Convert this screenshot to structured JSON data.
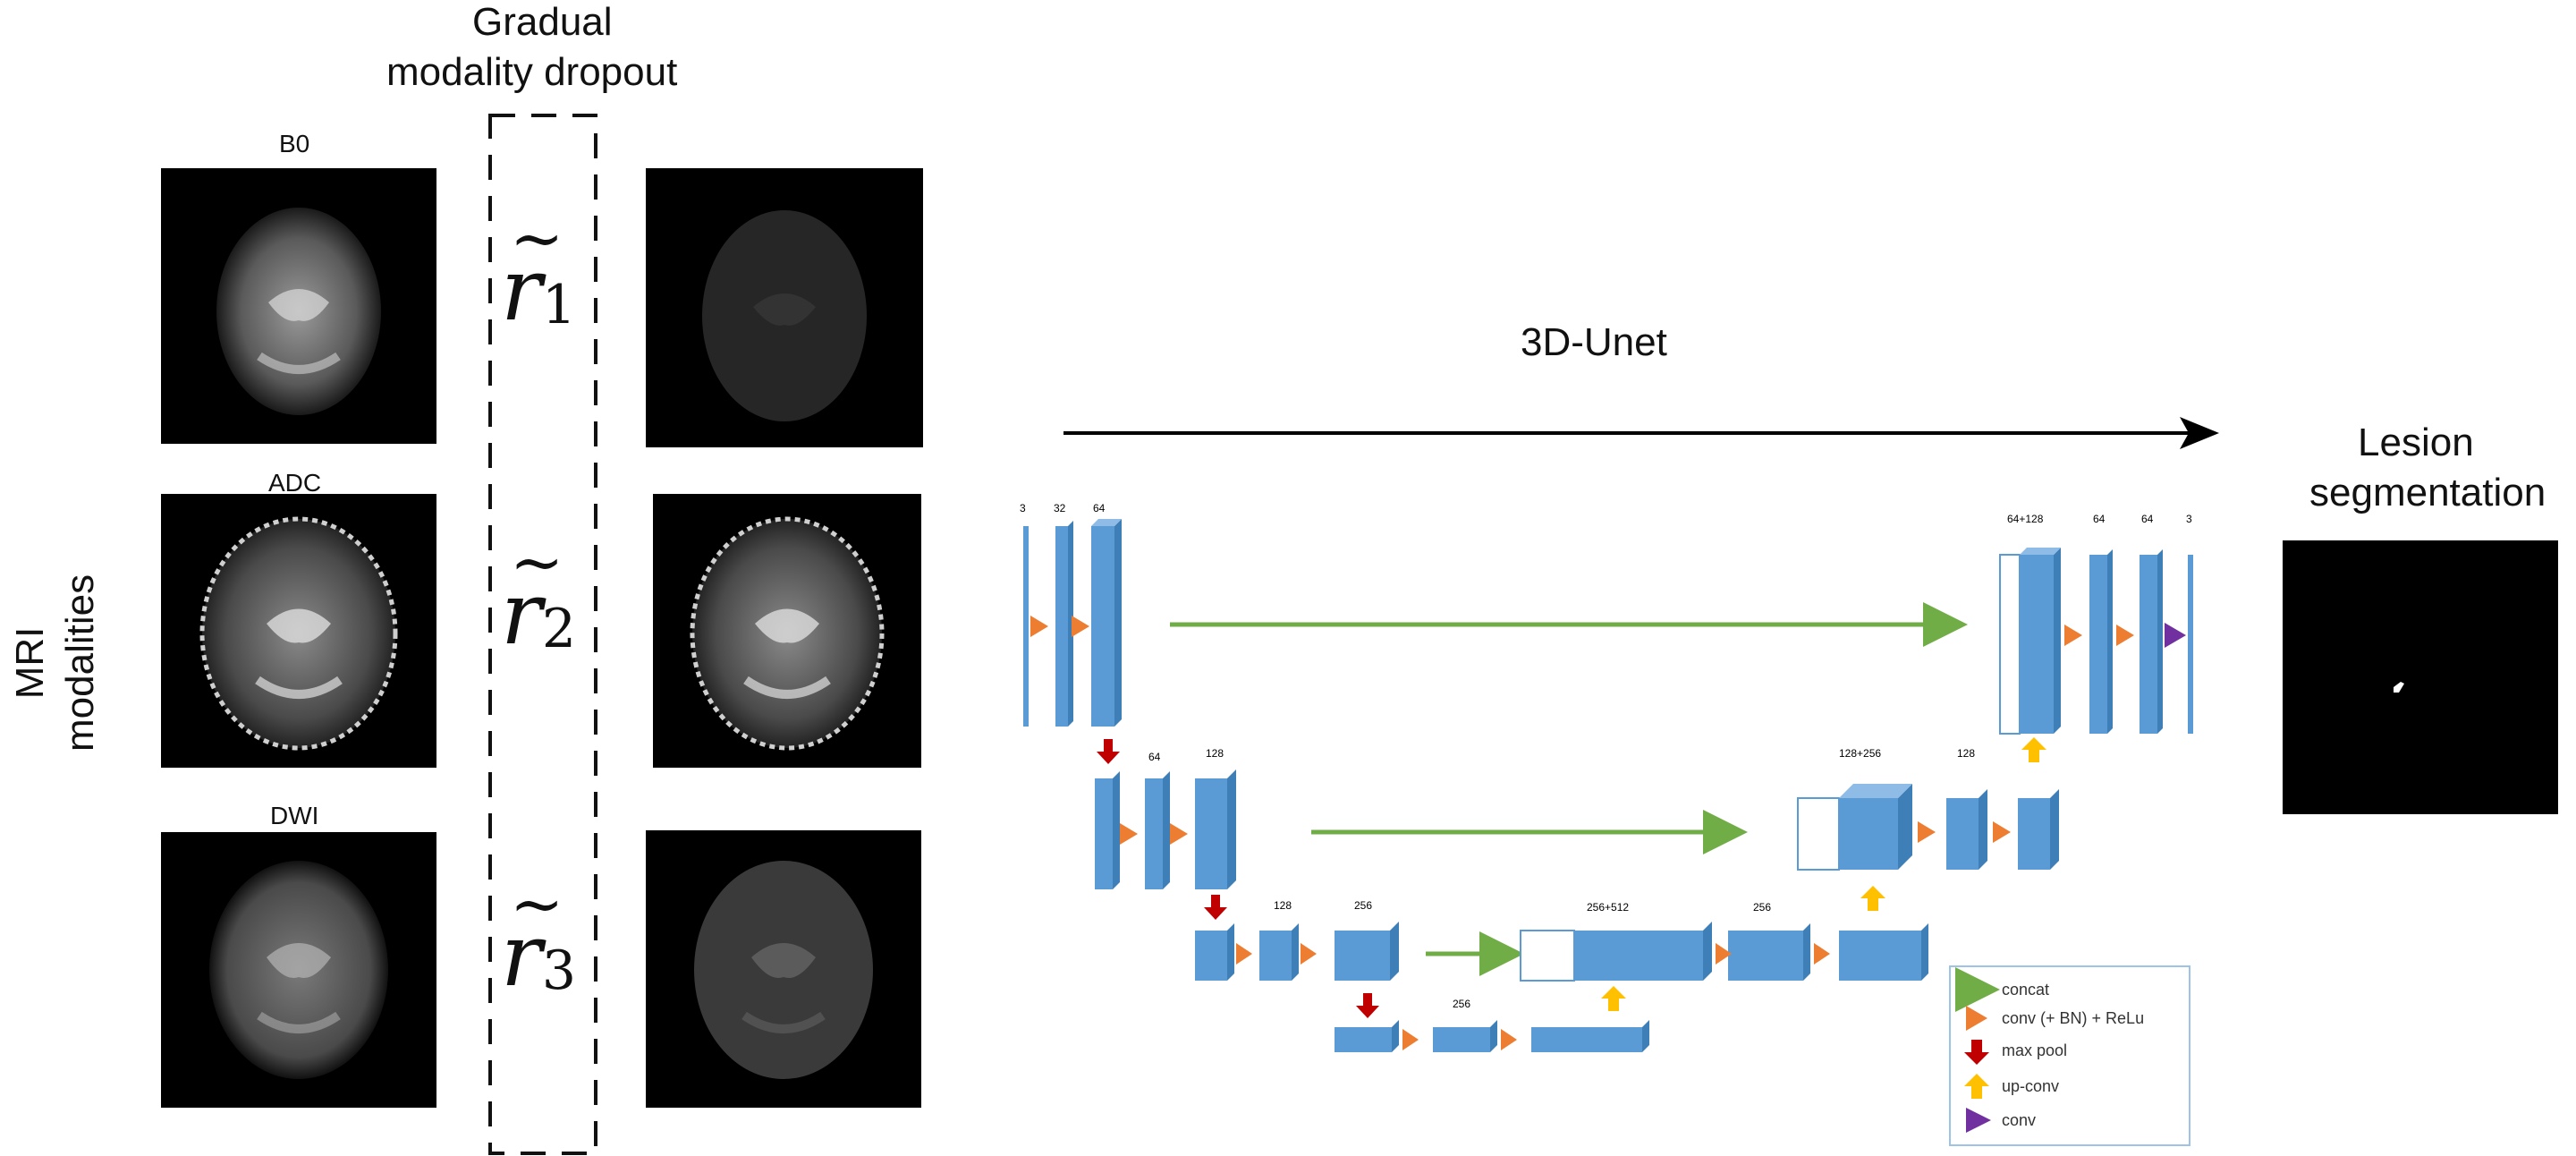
{
  "header": {
    "title_line1": "Gradual",
    "title_line2": "modality dropout"
  },
  "side_label": {
    "line1": "MRI",
    "line2": "modalities"
  },
  "modalities": [
    {
      "name": "B0"
    },
    {
      "name": "ADC"
    },
    {
      "name": "DWI"
    }
  ],
  "dropout": [
    {
      "symbol": "r",
      "subscript": "1",
      "accent": "~"
    },
    {
      "symbol": "r",
      "subscript": "2",
      "accent": "~"
    },
    {
      "symbol": "r",
      "subscript": "3",
      "accent": "~"
    }
  ],
  "network": {
    "arrow_label": "3D-Unet",
    "channels": {
      "c3": "3",
      "c32": "32",
      "c64": "64",
      "l1_64": "64",
      "l1_128": "128",
      "l2_128": "128",
      "l2_256": "256",
      "l3_256": "256",
      "u2_cat": "256+512",
      "u2_256": "256",
      "u1_cat": "128+256",
      "u1_128": "128",
      "u0_cat": "64+128",
      "u0_64a": "64",
      "u0_64b": "64",
      "u0_3": "3"
    }
  },
  "legend": {
    "concat": "concat",
    "conv_bn": "conv (+ BN) + ReLu",
    "max_pool": "max pool",
    "up_conv": "up-conv",
    "conv": "conv"
  },
  "output": {
    "line1": "Lesion",
    "line2": "segmentation"
  },
  "colors": {
    "block": "#5b9bd5",
    "block_side": "#3f7fb8",
    "concat_arrow": "#70ad47",
    "conv_arrow": "#ed7d31",
    "pool_arrow": "#c00000",
    "upconv_arrow": "#ffc000",
    "final_conv": "#7030a0"
  }
}
